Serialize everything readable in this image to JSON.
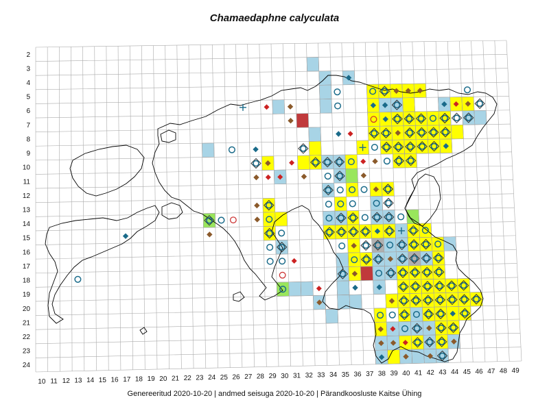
{
  "title": "Chamaedaphne calyculata",
  "footer": "Genereeritud 2020-10-20  |  andmed seisuga 2020-10-20  |  Pärandkoosluste Kaitse Ühing",
  "grid": {
    "row_labels": [
      "2",
      "3",
      "4",
      "5",
      "6",
      "7",
      "8",
      "9",
      "10",
      "11",
      "12",
      "13",
      "14",
      "15",
      "16",
      "17",
      "18",
      "19",
      "20",
      "21",
      "22",
      "23",
      "24"
    ],
    "col_labels": [
      "10",
      "11",
      "12",
      "13",
      "14",
      "15",
      "16",
      "17",
      "18",
      "19",
      "20",
      "21",
      "22",
      "23",
      "24",
      "25",
      "26",
      "27",
      "28",
      "29",
      "30",
      "31",
      "32",
      "33",
      "34",
      "35",
      "36",
      "37",
      "38",
      "39",
      "40",
      "41",
      "42",
      "43",
      "44",
      "45",
      "46",
      "47",
      "48",
      "49"
    ]
  },
  "colors": {
    "cell_blue": "#a8d4e6",
    "cell_yellow": "#ffff00",
    "cell_green": "#99e65c",
    "cell_red": "#c0393b",
    "cell_grey": "#b0b0b0",
    "diamond_blue": "#1a6b8a",
    "diamond_brown": "#8b5a2b",
    "diamond_red": "#cc2222",
    "ring_blue": "#1a6b8a",
    "ring_red": "#cc3333",
    "grid_line": "#aaaaaa",
    "coast": "#000000"
  },
  "cells": [
    [
      "blue",
      33,
      3
    ],
    [
      "blue",
      34,
      4
    ],
    [
      "blue",
      36,
      4
    ],
    [
      "blue",
      34,
      5
    ],
    [
      "yellow",
      38,
      5
    ],
    [
      "yellow",
      39,
      5
    ],
    [
      "yellow",
      40,
      5
    ],
    [
      "yellow",
      41,
      5
    ],
    [
      "yellow",
      42,
      5
    ],
    [
      "blue",
      30,
      6
    ],
    [
      "blue",
      34,
      6
    ],
    [
      "yellow",
      38,
      6
    ],
    [
      "blue",
      39,
      6
    ],
    [
      "blue",
      40,
      6
    ],
    [
      "yellow",
      41,
      6
    ],
    [
      "blue",
      44,
      6
    ],
    [
      "yellow",
      45,
      6
    ],
    [
      "yellow",
      46,
      6
    ],
    [
      "red",
      32,
      7
    ],
    [
      "yellow",
      38,
      7
    ],
    [
      "yellow",
      39,
      7
    ],
    [
      "yellow",
      40,
      7
    ],
    [
      "yellow",
      41,
      7
    ],
    [
      "yellow",
      42,
      7
    ],
    [
      "yellow",
      43,
      7
    ],
    [
      "yellow",
      44,
      7
    ],
    [
      "blue",
      46,
      7
    ],
    [
      "blue",
      47,
      7
    ],
    [
      "blue",
      33,
      8
    ],
    [
      "yellow",
      38,
      8
    ],
    [
      "yellow",
      39,
      8
    ],
    [
      "yellow",
      40,
      8
    ],
    [
      "yellow",
      41,
      8
    ],
    [
      "yellow",
      42,
      8
    ],
    [
      "yellow",
      43,
      8
    ],
    [
      "yellow",
      44,
      8
    ],
    [
      "yellow",
      45,
      8
    ],
    [
      "blue",
      24,
      9
    ],
    [
      "yellow",
      33,
      9
    ],
    [
      "yellow",
      37,
      9
    ],
    [
      "yellow",
      39,
      9
    ],
    [
      "yellow",
      40,
      9
    ],
    [
      "yellow",
      41,
      9
    ],
    [
      "yellow",
      42,
      9
    ],
    [
      "yellow",
      43,
      9
    ],
    [
      "yellow",
      44,
      9
    ],
    [
      "yellow",
      29,
      10
    ],
    [
      "yellow",
      32,
      10
    ],
    [
      "yellow",
      33,
      10
    ],
    [
      "blue",
      34,
      10
    ],
    [
      "blue",
      35,
      10
    ],
    [
      "yellow",
      36,
      10
    ],
    [
      "yellow",
      40,
      10
    ],
    [
      "yellow",
      41,
      10
    ],
    [
      "blue",
      30,
      11
    ],
    [
      "green",
      36,
      11
    ],
    [
      "blue",
      35,
      11
    ],
    [
      "blue",
      34,
      12
    ],
    [
      "yellow",
      36,
      12
    ],
    [
      "yellow",
      38,
      12
    ],
    [
      "yellow",
      39,
      12
    ],
    [
      "yellow",
      29,
      13
    ],
    [
      "yellow",
      35,
      13
    ],
    [
      "blue",
      38,
      13
    ],
    [
      "green",
      24,
      14
    ],
    [
      "yellow",
      29,
      14
    ],
    [
      "yellow",
      30,
      14
    ],
    [
      "blue",
      34,
      14
    ],
    [
      "blue",
      35,
      14
    ],
    [
      "yellow",
      36,
      14
    ],
    [
      "blue",
      38,
      14
    ],
    [
      "blue",
      39,
      14
    ],
    [
      "green",
      41,
      14
    ],
    [
      "yellow",
      29,
      15
    ],
    [
      "yellow",
      34,
      15
    ],
    [
      "yellow",
      35,
      15
    ],
    [
      "yellow",
      36,
      15
    ],
    [
      "yellow",
      37,
      15
    ],
    [
      "yellow",
      38,
      15
    ],
    [
      "yellow",
      39,
      15
    ],
    [
      "blue",
      40,
      15
    ],
    [
      "yellow",
      41,
      15
    ],
    [
      "yellow",
      42,
      15
    ],
    [
      "blue",
      30,
      16
    ],
    [
      "yellow",
      36,
      16
    ],
    [
      "grey",
      38,
      16
    ],
    [
      "blue",
      39,
      16
    ],
    [
      "blue",
      40,
      16
    ],
    [
      "yellow",
      41,
      16
    ],
    [
      "yellow",
      42,
      16
    ],
    [
      "yellow",
      43,
      16
    ],
    [
      "blue",
      44,
      16
    ],
    [
      "blue",
      35,
      17
    ],
    [
      "yellow",
      36,
      17
    ],
    [
      "yellow",
      37,
      17
    ],
    [
      "blue",
      38,
      17
    ],
    [
      "blue",
      39,
      17
    ],
    [
      "blue",
      40,
      17
    ],
    [
      "grey",
      41,
      17
    ],
    [
      "blue",
      42,
      17
    ],
    [
      "yellow",
      43,
      17
    ],
    [
      "blue",
      35,
      18
    ],
    [
      "yellow",
      36,
      18
    ],
    [
      "red",
      37,
      18
    ],
    [
      "blue",
      38,
      18
    ],
    [
      "blue",
      39,
      18
    ],
    [
      "yellow",
      40,
      18
    ],
    [
      "yellow",
      41,
      18
    ],
    [
      "yellow",
      42,
      18
    ],
    [
      "yellow",
      43,
      18
    ],
    [
      "green",
      30,
      19
    ],
    [
      "blue",
      31,
      19
    ],
    [
      "blue",
      32,
      19
    ],
    [
      "blue",
      35,
      19
    ],
    [
      "blue",
      38,
      19
    ],
    [
      "yellow",
      40,
      19
    ],
    [
      "yellow",
      41,
      19
    ],
    [
      "yellow",
      42,
      19
    ],
    [
      "yellow",
      43,
      19
    ],
    [
      "yellow",
      44,
      19
    ],
    [
      "yellow",
      45,
      19
    ],
    [
      "blue",
      33,
      20
    ],
    [
      "blue",
      35,
      20
    ],
    [
      "blue",
      36,
      20
    ],
    [
      "yellow",
      39,
      20
    ],
    [
      "yellow",
      40,
      20
    ],
    [
      "yellow",
      41,
      20
    ],
    [
      "yellow",
      42,
      20
    ],
    [
      "yellow",
      43,
      20
    ],
    [
      "yellow",
      44,
      20
    ],
    [
      "yellow",
      45,
      20
    ],
    [
      "yellow",
      46,
      20
    ],
    [
      "blue",
      34,
      21
    ],
    [
      "yellow",
      38,
      21
    ],
    [
      "yellow",
      40,
      21
    ],
    [
      "blue",
      41,
      21
    ],
    [
      "yellow",
      42,
      21
    ],
    [
      "yellow",
      43,
      21
    ],
    [
      "yellow",
      44,
      21
    ],
    [
      "yellow",
      45,
      21
    ],
    [
      "yellow",
      38,
      22
    ],
    [
      "blue",
      39,
      22
    ],
    [
      "blue",
      40,
      22
    ],
    [
      "blue",
      41,
      22
    ],
    [
      "blue",
      42,
      22
    ],
    [
      "yellow",
      43,
      22
    ],
    [
      "yellow",
      44,
      22
    ],
    [
      "blue",
      38,
      23
    ],
    [
      "blue",
      39,
      23
    ],
    [
      "yellow",
      40,
      23
    ],
    [
      "yellow",
      41,
      23
    ],
    [
      "blue",
      42,
      23
    ],
    [
      "yellow",
      43,
      23
    ],
    [
      "blue",
      44,
      23
    ],
    [
      "blue",
      38,
      24
    ],
    [
      "yellow",
      39,
      24
    ],
    [
      "blue",
      40,
      24
    ],
    [
      "blue",
      41,
      24
    ],
    [
      "blue",
      42,
      24
    ],
    [
      "blue",
      43,
      24
    ]
  ],
  "markers": [
    [
      "bdia",
      36,
      4
    ],
    [
      "ring",
      35,
      5
    ],
    [
      "ring",
      38,
      5
    ],
    [
      "rd",
      39,
      5
    ],
    [
      "brdia",
      40,
      5
    ],
    [
      "brdia",
      41,
      5
    ],
    [
      "brdia",
      42,
      5
    ],
    [
      "ring",
      46,
      5
    ],
    [
      "plus",
      27,
      6
    ],
    [
      "rdia",
      29,
      6
    ],
    [
      "brdia",
      31,
      6
    ],
    [
      "ring",
      35,
      6
    ],
    [
      "bdia",
      38,
      6
    ],
    [
      "bdia",
      39,
      6
    ],
    [
      "rd",
      40,
      6
    ],
    [
      "bdia",
      44,
      6
    ],
    [
      "rdia",
      45,
      6
    ],
    [
      "brdia",
      46,
      6
    ],
    [
      "rd",
      47,
      6
    ],
    [
      "brdia",
      31,
      7
    ],
    [
      "rring",
      38,
      7
    ],
    [
      "bdia",
      39,
      7
    ],
    [
      "rd",
      40,
      7
    ],
    [
      "rd",
      41,
      7
    ],
    [
      "rd",
      42,
      7
    ],
    [
      "ring",
      43,
      7
    ],
    [
      "rd",
      44,
      7
    ],
    [
      "rd",
      45,
      7
    ],
    [
      "rd",
      46,
      7
    ],
    [
      "bdia",
      35,
      8
    ],
    [
      "rdia",
      36,
      8
    ],
    [
      "rd",
      38,
      8
    ],
    [
      "rd",
      39,
      8
    ],
    [
      "brdia",
      40,
      8
    ],
    [
      "rd",
      41,
      8
    ],
    [
      "rd",
      42,
      8
    ],
    [
      "rd",
      43,
      8
    ],
    [
      "rd",
      44,
      8
    ],
    [
      "ring",
      26,
      9
    ],
    [
      "bdia",
      28,
      9
    ],
    [
      "rd",
      32,
      9
    ],
    [
      "plus",
      37,
      9
    ],
    [
      "ring",
      38,
      9
    ],
    [
      "rd",
      39,
      9
    ],
    [
      "rd",
      40,
      9
    ],
    [
      "rd",
      41,
      9
    ],
    [
      "rd",
      42,
      9
    ],
    [
      "rd",
      43,
      9
    ],
    [
      "bdia",
      44,
      9
    ],
    [
      "rd",
      28,
      10
    ],
    [
      "brdia",
      29,
      10
    ],
    [
      "rdia",
      31,
      10
    ],
    [
      "rd",
      33,
      10
    ],
    [
      "rd",
      34,
      10
    ],
    [
      "rd",
      35,
      10
    ],
    [
      "ring",
      36,
      10
    ],
    [
      "rdia",
      37,
      10
    ],
    [
      "brdia",
      38,
      10
    ],
    [
      "ring",
      39,
      10
    ],
    [
      "rd",
      40,
      10
    ],
    [
      "rd",
      41,
      10
    ],
    [
      "brdia",
      28,
      11
    ],
    [
      "rdia",
      29,
      11
    ],
    [
      "rdia",
      30,
      11
    ],
    [
      "brdia",
      32,
      11
    ],
    [
      "ring",
      34,
      11
    ],
    [
      "rd",
      35,
      11
    ],
    [
      "brdia",
      37,
      11
    ],
    [
      "rd",
      34,
      12
    ],
    [
      "ring",
      35,
      12
    ],
    [
      "ring",
      36,
      12
    ],
    [
      "ring",
      37,
      12
    ],
    [
      "brdia",
      38,
      12
    ],
    [
      "rd",
      39,
      12
    ],
    [
      "brdia",
      28,
      13
    ],
    [
      "rd",
      29,
      13
    ],
    [
      "ring",
      34,
      13
    ],
    [
      "ring",
      35,
      13
    ],
    [
      "ring",
      36,
      13
    ],
    [
      "ring",
      38,
      13
    ],
    [
      "rd",
      39,
      13
    ],
    [
      "rd",
      24,
      14
    ],
    [
      "ring",
      25,
      14
    ],
    [
      "rring",
      26,
      14
    ],
    [
      "brdia",
      28,
      14
    ],
    [
      "ring",
      29,
      14
    ],
    [
      "ring",
      34,
      14
    ],
    [
      "rd",
      35,
      14
    ],
    [
      "rd",
      36,
      14
    ],
    [
      "ring",
      37,
      14
    ],
    [
      "rd",
      38,
      14
    ],
    [
      "rd",
      39,
      14
    ],
    [
      "ring",
      40,
      14
    ],
    [
      "bdia",
      17,
      15
    ],
    [
      "brdia",
      24,
      15
    ],
    [
      "rd",
      29,
      15
    ],
    [
      "ring",
      30,
      15
    ],
    [
      "rd",
      34,
      15
    ],
    [
      "rd",
      35,
      15
    ],
    [
      "rd",
      36,
      15
    ],
    [
      "rd",
      37,
      15
    ],
    [
      "bdia",
      38,
      15
    ],
    [
      "rd",
      39,
      15
    ],
    [
      "plus",
      40,
      15
    ],
    [
      "rd",
      41,
      15
    ],
    [
      "ring",
      42,
      15
    ],
    [
      "ring",
      29,
      16
    ],
    [
      "rd",
      30,
      16
    ],
    [
      "ring",
      35,
      16
    ],
    [
      "brdia",
      36,
      16
    ],
    [
      "rd",
      37,
      16
    ],
    [
      "rd",
      38,
      16
    ],
    [
      "ring",
      39,
      16
    ],
    [
      "rd",
      40,
      16
    ],
    [
      "rd",
      41,
      16
    ],
    [
      "rd",
      42,
      16
    ],
    [
      "ring",
      43,
      16
    ],
    [
      "ring",
      29,
      17
    ],
    [
      "ring",
      30,
      17
    ],
    [
      "rdia",
      31,
      17
    ],
    [
      "ring",
      36,
      17
    ],
    [
      "rd",
      37,
      17
    ],
    [
      "rd",
      38,
      17
    ],
    [
      "brdia",
      39,
      17
    ],
    [
      "rd",
      40,
      17
    ],
    [
      "rd",
      41,
      17
    ],
    [
      "rd",
      42,
      17
    ],
    [
      "rd",
      43,
      17
    ],
    [
      "ring",
      13,
      18
    ],
    [
      "rring",
      30,
      18
    ],
    [
      "rd",
      35,
      18
    ],
    [
      "brdia",
      36,
      18
    ],
    [
      "ring",
      38,
      18
    ],
    [
      "rd",
      39,
      18
    ],
    [
      "rd",
      40,
      18
    ],
    [
      "rd",
      41,
      18
    ],
    [
      "rd",
      42,
      18
    ],
    [
      "rd",
      43,
      18
    ],
    [
      "ring",
      30,
      19
    ],
    [
      "rdia",
      33,
      19
    ],
    [
      "bdia",
      36,
      19
    ],
    [
      "bdia",
      38,
      19
    ],
    [
      "rd",
      40,
      19
    ],
    [
      "rd",
      41,
      19
    ],
    [
      "rd",
      42,
      19
    ],
    [
      "rd",
      43,
      19
    ],
    [
      "rd",
      44,
      19
    ],
    [
      "rd",
      45,
      19
    ],
    [
      "brdia",
      33,
      20
    ],
    [
      "brdia",
      39,
      20
    ],
    [
      "rd",
      40,
      20
    ],
    [
      "rd",
      41,
      20
    ],
    [
      "rd",
      42,
      20
    ],
    [
      "rd",
      43,
      20
    ],
    [
      "rd",
      44,
      20
    ],
    [
      "rd",
      45,
      20
    ],
    [
      "rd",
      46,
      20
    ],
    [
      "ring",
      38,
      21
    ],
    [
      "ring",
      39,
      21
    ],
    [
      "rd",
      40,
      21
    ],
    [
      "ring",
      41,
      21
    ],
    [
      "rd",
      42,
      21
    ],
    [
      "rd",
      43,
      21
    ],
    [
      "bdia",
      44,
      21
    ],
    [
      "rd",
      45,
      21
    ],
    [
      "brdia",
      38,
      22
    ],
    [
      "rdia",
      39,
      22
    ],
    [
      "ring",
      40,
      22
    ],
    [
      "rd",
      41,
      22
    ],
    [
      "brdia",
      42,
      22
    ],
    [
      "rd",
      43,
      22
    ],
    [
      "rd",
      44,
      22
    ],
    [
      "brdia",
      38,
      23
    ],
    [
      "brdia",
      39,
      23
    ],
    [
      "rdia",
      40,
      23
    ],
    [
      "rd",
      41,
      23
    ],
    [
      "rd",
      42,
      23
    ],
    [
      "rd",
      43,
      23
    ],
    [
      "brdia",
      44,
      23
    ],
    [
      "bdia",
      38,
      24
    ],
    [
      "brdia",
      40,
      24
    ],
    [
      "brdia",
      42,
      24
    ],
    [
      "rd",
      43,
      24
    ]
  ]
}
